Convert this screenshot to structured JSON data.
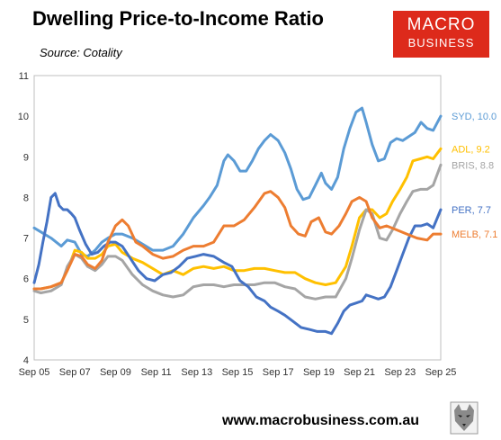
{
  "title": "Dwelling Price-to-Income Ratio",
  "source": "Source: Cotality",
  "logo": {
    "line1": "MACRO",
    "line2": "BUSINESS",
    "color": "#dd2a1b"
  },
  "website": "www.macrobusiness.com.au",
  "chart_data": {
    "type": "line",
    "title": "Dwelling Price-to-Income Ratio",
    "xlabel": "",
    "ylabel": "",
    "xlim": [
      2005.67,
      2025.67
    ],
    "ylim": [
      4,
      11
    ],
    "y_ticks": [
      4,
      5,
      6,
      7,
      8,
      9,
      10,
      11
    ],
    "x_ticks": [
      {
        "v": 2005.67,
        "label": "Sep 05"
      },
      {
        "v": 2007.67,
        "label": "Sep 07"
      },
      {
        "v": 2009.67,
        "label": "Sep 09"
      },
      {
        "v": 2011.67,
        "label": "Sep 11"
      },
      {
        "v": 2013.67,
        "label": "Sep 13"
      },
      {
        "v": 2015.67,
        "label": "Sep 15"
      },
      {
        "v": 2017.67,
        "label": "Sep 17"
      },
      {
        "v": 2019.67,
        "label": "Sep 19"
      },
      {
        "v": 2021.67,
        "label": "Sep 21"
      },
      {
        "v": 2023.67,
        "label": "Sep 23"
      },
      {
        "v": 2025.67,
        "label": "Sep 25"
      }
    ],
    "grid": false,
    "series": [
      {
        "name": "SYD",
        "end_label": "SYD, 10.0",
        "color": "#5b9bd5",
        "points": [
          [
            2005.67,
            7.25
          ],
          [
            2006.0,
            7.15
          ],
          [
            2006.5,
            7.0
          ],
          [
            2007.0,
            6.8
          ],
          [
            2007.3,
            6.95
          ],
          [
            2007.67,
            6.9
          ],
          [
            2008.0,
            6.6
          ],
          [
            2008.3,
            6.55
          ],
          [
            2008.67,
            6.7
          ],
          [
            2009.0,
            6.9
          ],
          [
            2009.3,
            7.0
          ],
          [
            2009.67,
            7.1
          ],
          [
            2010.0,
            7.1
          ],
          [
            2010.5,
            7.0
          ],
          [
            2011.0,
            6.85
          ],
          [
            2011.5,
            6.7
          ],
          [
            2012.0,
            6.7
          ],
          [
            2012.5,
            6.8
          ],
          [
            2013.0,
            7.1
          ],
          [
            2013.5,
            7.5
          ],
          [
            2014.0,
            7.8
          ],
          [
            2014.3,
            8.0
          ],
          [
            2014.67,
            8.3
          ],
          [
            2015.0,
            8.9
          ],
          [
            2015.2,
            9.05
          ],
          [
            2015.5,
            8.9
          ],
          [
            2015.8,
            8.65
          ],
          [
            2016.1,
            8.65
          ],
          [
            2016.4,
            8.9
          ],
          [
            2016.7,
            9.2
          ],
          [
            2017.0,
            9.4
          ],
          [
            2017.3,
            9.55
          ],
          [
            2017.67,
            9.4
          ],
          [
            2018.0,
            9.1
          ],
          [
            2018.3,
            8.7
          ],
          [
            2018.6,
            8.2
          ],
          [
            2018.9,
            7.95
          ],
          [
            2019.2,
            8.0
          ],
          [
            2019.5,
            8.3
          ],
          [
            2019.8,
            8.6
          ],
          [
            2020.0,
            8.35
          ],
          [
            2020.3,
            8.2
          ],
          [
            2020.6,
            8.5
          ],
          [
            2020.9,
            9.2
          ],
          [
            2021.2,
            9.7
          ],
          [
            2021.5,
            10.1
          ],
          [
            2021.8,
            10.2
          ],
          [
            2022.0,
            9.85
          ],
          [
            2022.3,
            9.3
          ],
          [
            2022.6,
            8.9
          ],
          [
            2022.9,
            8.95
          ],
          [
            2023.2,
            9.35
          ],
          [
            2023.5,
            9.45
          ],
          [
            2023.8,
            9.4
          ],
          [
            2024.1,
            9.5
          ],
          [
            2024.4,
            9.6
          ],
          [
            2024.7,
            9.85
          ],
          [
            2025.0,
            9.7
          ],
          [
            2025.3,
            9.65
          ],
          [
            2025.67,
            10.0
          ]
        ]
      },
      {
        "name": "ADL",
        "end_label": "ADL, 9.2",
        "color": "#ffc000",
        "points": [
          [
            2005.67,
            5.75
          ],
          [
            2006.0,
            5.75
          ],
          [
            2006.5,
            5.8
          ],
          [
            2007.0,
            5.9
          ],
          [
            2007.3,
            6.2
          ],
          [
            2007.67,
            6.7
          ],
          [
            2008.0,
            6.65
          ],
          [
            2008.3,
            6.5
          ],
          [
            2008.67,
            6.5
          ],
          [
            2009.0,
            6.6
          ],
          [
            2009.3,
            6.8
          ],
          [
            2009.67,
            6.85
          ],
          [
            2010.0,
            6.65
          ],
          [
            2010.5,
            6.5
          ],
          [
            2011.0,
            6.4
          ],
          [
            2011.5,
            6.25
          ],
          [
            2012.0,
            6.1
          ],
          [
            2012.5,
            6.2
          ],
          [
            2013.0,
            6.1
          ],
          [
            2013.5,
            6.25
          ],
          [
            2014.0,
            6.3
          ],
          [
            2014.5,
            6.25
          ],
          [
            2015.0,
            6.3
          ],
          [
            2015.5,
            6.2
          ],
          [
            2016.0,
            6.2
          ],
          [
            2016.5,
            6.25
          ],
          [
            2017.0,
            6.25
          ],
          [
            2017.5,
            6.2
          ],
          [
            2018.0,
            6.15
          ],
          [
            2018.5,
            6.15
          ],
          [
            2019.0,
            6.0
          ],
          [
            2019.5,
            5.9
          ],
          [
            2020.0,
            5.85
          ],
          [
            2020.5,
            5.9
          ],
          [
            2021.0,
            6.3
          ],
          [
            2021.3,
            6.8
          ],
          [
            2021.67,
            7.5
          ],
          [
            2022.0,
            7.7
          ],
          [
            2022.3,
            7.7
          ],
          [
            2022.67,
            7.5
          ],
          [
            2023.0,
            7.6
          ],
          [
            2023.3,
            7.9
          ],
          [
            2023.67,
            8.2
          ],
          [
            2024.0,
            8.5
          ],
          [
            2024.3,
            8.9
          ],
          [
            2024.67,
            8.95
          ],
          [
            2025.0,
            9.0
          ],
          [
            2025.3,
            8.95
          ],
          [
            2025.67,
            9.2
          ]
        ]
      },
      {
        "name": "BRIS",
        "end_label": "BRIS, 8.8",
        "color": "#a5a5a5",
        "points": [
          [
            2005.67,
            5.7
          ],
          [
            2006.0,
            5.65
          ],
          [
            2006.5,
            5.7
          ],
          [
            2007.0,
            5.85
          ],
          [
            2007.3,
            6.3
          ],
          [
            2007.67,
            6.6
          ],
          [
            2008.0,
            6.5
          ],
          [
            2008.3,
            6.3
          ],
          [
            2008.67,
            6.2
          ],
          [
            2009.0,
            6.35
          ],
          [
            2009.3,
            6.55
          ],
          [
            2009.67,
            6.55
          ],
          [
            2010.0,
            6.45
          ],
          [
            2010.5,
            6.1
          ],
          [
            2011.0,
            5.85
          ],
          [
            2011.5,
            5.7
          ],
          [
            2012.0,
            5.6
          ],
          [
            2012.5,
            5.55
          ],
          [
            2013.0,
            5.6
          ],
          [
            2013.5,
            5.8
          ],
          [
            2014.0,
            5.85
          ],
          [
            2014.5,
            5.85
          ],
          [
            2015.0,
            5.8
          ],
          [
            2015.5,
            5.85
          ],
          [
            2016.0,
            5.85
          ],
          [
            2016.5,
            5.85
          ],
          [
            2017.0,
            5.9
          ],
          [
            2017.5,
            5.9
          ],
          [
            2018.0,
            5.8
          ],
          [
            2018.5,
            5.75
          ],
          [
            2019.0,
            5.55
          ],
          [
            2019.5,
            5.5
          ],
          [
            2020.0,
            5.55
          ],
          [
            2020.5,
            5.55
          ],
          [
            2021.0,
            6.0
          ],
          [
            2021.3,
            6.5
          ],
          [
            2021.67,
            7.2
          ],
          [
            2022.0,
            7.7
          ],
          [
            2022.3,
            7.6
          ],
          [
            2022.67,
            7.0
          ],
          [
            2023.0,
            6.95
          ],
          [
            2023.3,
            7.2
          ],
          [
            2023.67,
            7.6
          ],
          [
            2024.0,
            7.9
          ],
          [
            2024.3,
            8.15
          ],
          [
            2024.67,
            8.2
          ],
          [
            2025.0,
            8.2
          ],
          [
            2025.3,
            8.3
          ],
          [
            2025.67,
            8.8
          ]
        ]
      },
      {
        "name": "PER",
        "end_label": "PER, 7.7",
        "color": "#4472c4",
        "points": [
          [
            2005.67,
            5.9
          ],
          [
            2005.9,
            6.35
          ],
          [
            2006.1,
            6.9
          ],
          [
            2006.3,
            7.4
          ],
          [
            2006.5,
            8.0
          ],
          [
            2006.7,
            8.1
          ],
          [
            2006.9,
            7.8
          ],
          [
            2007.1,
            7.7
          ],
          [
            2007.3,
            7.7
          ],
          [
            2007.5,
            7.6
          ],
          [
            2007.67,
            7.5
          ],
          [
            2007.9,
            7.2
          ],
          [
            2008.2,
            6.85
          ],
          [
            2008.5,
            6.6
          ],
          [
            2008.8,
            6.65
          ],
          [
            2009.1,
            6.8
          ],
          [
            2009.4,
            6.9
          ],
          [
            2009.67,
            6.9
          ],
          [
            2010.0,
            6.8
          ],
          [
            2010.4,
            6.5
          ],
          [
            2010.8,
            6.2
          ],
          [
            2011.2,
            6.0
          ],
          [
            2011.6,
            5.95
          ],
          [
            2012.0,
            6.1
          ],
          [
            2012.4,
            6.15
          ],
          [
            2012.8,
            6.3
          ],
          [
            2013.2,
            6.5
          ],
          [
            2013.6,
            6.55
          ],
          [
            2014.0,
            6.6
          ],
          [
            2014.5,
            6.55
          ],
          [
            2015.0,
            6.4
          ],
          [
            2015.4,
            6.3
          ],
          [
            2015.8,
            5.95
          ],
          [
            2016.2,
            5.8
          ],
          [
            2016.6,
            5.55
          ],
          [
            2017.0,
            5.45
          ],
          [
            2017.3,
            5.3
          ],
          [
            2017.67,
            5.2
          ],
          [
            2018.0,
            5.1
          ],
          [
            2018.4,
            4.95
          ],
          [
            2018.8,
            4.8
          ],
          [
            2019.2,
            4.75
          ],
          [
            2019.6,
            4.7
          ],
          [
            2020.0,
            4.7
          ],
          [
            2020.3,
            4.65
          ],
          [
            2020.6,
            4.9
          ],
          [
            2020.9,
            5.2
          ],
          [
            2021.2,
            5.35
          ],
          [
            2021.5,
            5.4
          ],
          [
            2021.8,
            5.45
          ],
          [
            2022.0,
            5.6
          ],
          [
            2022.3,
            5.55
          ],
          [
            2022.6,
            5.5
          ],
          [
            2022.9,
            5.55
          ],
          [
            2023.2,
            5.8
          ],
          [
            2023.5,
            6.2
          ],
          [
            2023.8,
            6.6
          ],
          [
            2024.1,
            7.0
          ],
          [
            2024.4,
            7.3
          ],
          [
            2024.7,
            7.3
          ],
          [
            2025.0,
            7.35
          ],
          [
            2025.3,
            7.25
          ],
          [
            2025.67,
            7.7
          ]
        ]
      },
      {
        "name": "MELB",
        "end_label": "MELB, 7.1",
        "color": "#ed7d31",
        "points": [
          [
            2005.67,
            5.75
          ],
          [
            2006.0,
            5.75
          ],
          [
            2006.5,
            5.8
          ],
          [
            2007.0,
            5.9
          ],
          [
            2007.3,
            6.2
          ],
          [
            2007.67,
            6.6
          ],
          [
            2008.0,
            6.55
          ],
          [
            2008.3,
            6.35
          ],
          [
            2008.67,
            6.25
          ],
          [
            2009.0,
            6.45
          ],
          [
            2009.3,
            6.9
          ],
          [
            2009.67,
            7.3
          ],
          [
            2010.0,
            7.45
          ],
          [
            2010.3,
            7.3
          ],
          [
            2010.67,
            6.9
          ],
          [
            2011.0,
            6.8
          ],
          [
            2011.5,
            6.6
          ],
          [
            2012.0,
            6.5
          ],
          [
            2012.5,
            6.55
          ],
          [
            2013.0,
            6.7
          ],
          [
            2013.5,
            6.8
          ],
          [
            2014.0,
            6.8
          ],
          [
            2014.5,
            6.9
          ],
          [
            2015.0,
            7.3
          ],
          [
            2015.5,
            7.3
          ],
          [
            2016.0,
            7.45
          ],
          [
            2016.5,
            7.75
          ],
          [
            2017.0,
            8.1
          ],
          [
            2017.3,
            8.15
          ],
          [
            2017.67,
            8.0
          ],
          [
            2018.0,
            7.75
          ],
          [
            2018.3,
            7.3
          ],
          [
            2018.67,
            7.1
          ],
          [
            2019.0,
            7.05
          ],
          [
            2019.3,
            7.4
          ],
          [
            2019.67,
            7.5
          ],
          [
            2020.0,
            7.15
          ],
          [
            2020.3,
            7.1
          ],
          [
            2020.67,
            7.3
          ],
          [
            2021.0,
            7.6
          ],
          [
            2021.3,
            7.9
          ],
          [
            2021.67,
            8.0
          ],
          [
            2022.0,
            7.9
          ],
          [
            2022.3,
            7.5
          ],
          [
            2022.67,
            7.25
          ],
          [
            2023.0,
            7.3
          ],
          [
            2023.5,
            7.2
          ],
          [
            2024.0,
            7.1
          ],
          [
            2024.5,
            7.0
          ],
          [
            2025.0,
            6.95
          ],
          [
            2025.3,
            7.1
          ],
          [
            2025.67,
            7.1
          ]
        ]
      }
    ]
  }
}
